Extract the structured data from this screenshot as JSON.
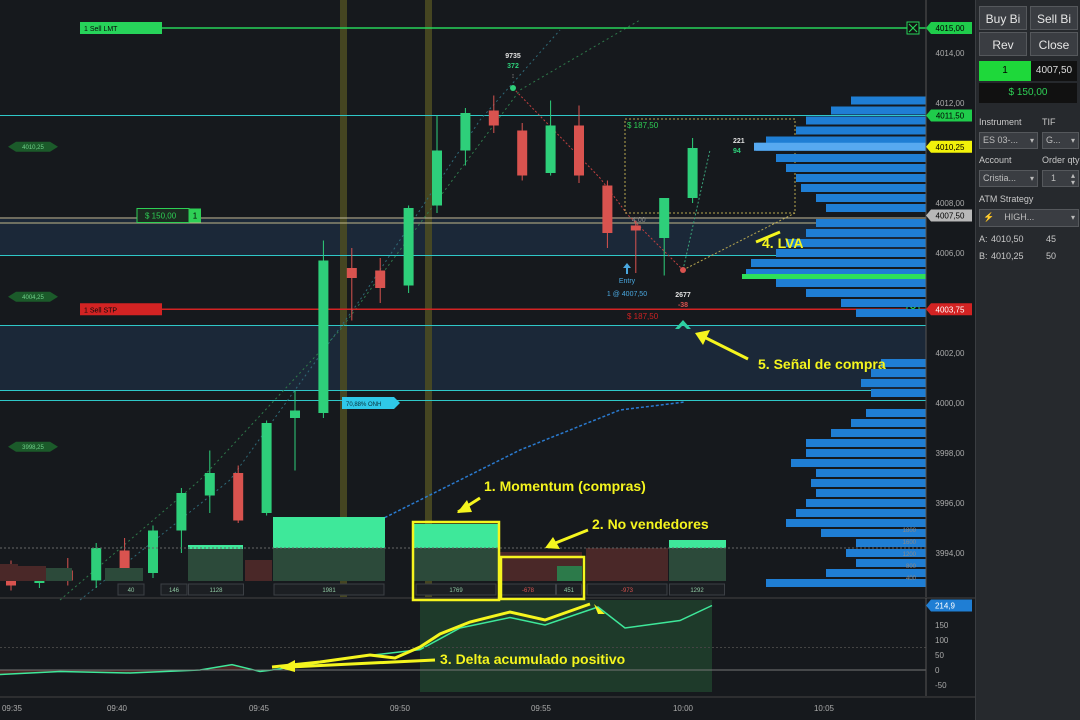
{
  "chart_data": {
    "type": "candlestick",
    "instrument_price_axis": {
      "ticks": [
        "4014,00",
        "4012,00",
        "4008,00",
        "4006,00",
        "4002,00",
        "4000,00",
        "3998,00",
        "3996,00",
        "3994,00"
      ],
      "ylim": [
        3992.5,
        4015.8
      ]
    },
    "time_axis": {
      "ticks": [
        "09:35",
        "09:40",
        "09:45",
        "09:50",
        "09:55",
        "10:00",
        "10:05"
      ]
    },
    "candles": [
      {
        "o": 3993.2,
        "h": 3993.7,
        "l": 3992.5,
        "c": 3992.7
      },
      {
        "o": 3992.8,
        "h": 3993.4,
        "l": 3992.6,
        "c": 3993.3
      },
      {
        "o": 3993.3,
        "h": 3993.8,
        "l": 3992.7,
        "c": 3992.9
      },
      {
        "o": 3992.9,
        "h": 3994.4,
        "l": 3992.6,
        "c": 3994.2
      },
      {
        "o": 3994.1,
        "h": 3994.6,
        "l": 3993.0,
        "c": 3993.1
      },
      {
        "o": 3993.2,
        "h": 3995.1,
        "l": 3993.0,
        "c": 3994.9
      },
      {
        "o": 3994.9,
        "h": 3996.6,
        "l": 3994.0,
        "c": 3996.4
      },
      {
        "o": 3996.3,
        "h": 3998.1,
        "l": 3995.6,
        "c": 3997.2
      },
      {
        "o": 3997.2,
        "h": 3997.5,
        "l": 3995.2,
        "c": 3995.3
      },
      {
        "o": 3995.6,
        "h": 3999.3,
        "l": 3995.5,
        "c": 3999.2
      },
      {
        "o": 3999.4,
        "h": 4000.5,
        "l": 3997.3,
        "c": 3999.7
      },
      {
        "o": 3999.6,
        "h": 4006.5,
        "l": 3999.4,
        "c": 4005.7
      },
      {
        "o": 4005.4,
        "h": 4006.2,
        "l": 4003.3,
        "c": 4005.0
      },
      {
        "o": 4005.3,
        "h": 4005.8,
        "l": 4004.0,
        "c": 4004.6
      },
      {
        "o": 4004.7,
        "h": 4007.9,
        "l": 4004.4,
        "c": 4007.8
      },
      {
        "o": 4007.9,
        "h": 4011.5,
        "l": 4007.6,
        "c": 4010.1
      },
      {
        "o": 4010.1,
        "h": 4011.8,
        "l": 4009.5,
        "c": 4011.6
      },
      {
        "o": 4011.7,
        "h": 4012.3,
        "l": 4010.8,
        "c": 4011.1
      },
      {
        "o": 4010.9,
        "h": 4011.2,
        "l": 4008.9,
        "c": 4009.1
      },
      {
        "o": 4009.2,
        "h": 4012.1,
        "l": 4009.1,
        "c": 4011.1
      },
      {
        "o": 4011.1,
        "h": 4011.9,
        "l": 4008.8,
        "c": 4009.1
      },
      {
        "o": 4008.7,
        "h": 4008.9,
        "l": 4006.2,
        "c": 4006.8
      },
      {
        "o": 4007.1,
        "h": 4007.3,
        "l": 4005.2,
        "c": 4006.9
      },
      {
        "o": 4006.6,
        "h": 4008.2,
        "l": 4005.1,
        "c": 4008.2
      },
      {
        "o": 4008.2,
        "h": 4010.6,
        "l": 4008.0,
        "c": 4010.2
      }
    ],
    "order_lines": [
      {
        "label": "1  Sell LMT",
        "price_tag": "4015,00",
        "y_price": 4015.0,
        "color": "#27d35a"
      },
      {
        "label": "1  Sell STP",
        "price_tag": "4003,75",
        "y_price": 4003.75,
        "color": "#d32323"
      }
    ],
    "price_tags": [
      {
        "text": "4011,50",
        "price": 4011.5,
        "bg": "#1fcc4b",
        "fg": "#000000"
      },
      {
        "text": "4010,25",
        "price": 4010.25,
        "bg": "#f2f20a",
        "fg": "#000000"
      },
      {
        "text": "4007,50",
        "price": 4007.5,
        "bg": "#b8b8b8",
        "fg": "#000000"
      },
      {
        "text": "4003,75",
        "price": 4003.75,
        "bg": "#d32323",
        "fg": "#ffffff"
      }
    ],
    "left_level_tags": [
      {
        "text": "4010,25",
        "price": 4010.25
      },
      {
        "text": "4004,25",
        "price": 4004.25
      },
      {
        "text": "3998,25",
        "price": 3998.25
      }
    ],
    "horizontal_levels": [
      4011.5,
      4007.2,
      4005.9,
      4003.1,
      4000.5,
      4000.1
    ],
    "position_tag": {
      "text": "$ 150,00",
      "qty": "1",
      "price": 4007.5
    },
    "profit_target_text": "$ 187,50",
    "loss_text": "$ 187,50",
    "trade_labels": {
      "high_volume": "9735",
      "high_delta": "372",
      "last_volume": "221",
      "last_delta": "94",
      "low_volume": "2677",
      "low_delta": "-38",
      "entry_label": "Entry",
      "entry_fill": "1 @ 4007,50",
      "stop_ghost": "4,00",
      "onh_label": "70,88%  ONH"
    },
    "volume_profile_bars": [
      {
        "price": 4012.1,
        "len": 75
      },
      {
        "price": 4011.7,
        "len": 95
      },
      {
        "price": 4011.3,
        "len": 120
      },
      {
        "price": 4010.9,
        "len": 130
      },
      {
        "price": 4010.5,
        "len": 160
      },
      {
        "price": 4010.25,
        "len": 170
      },
      {
        "price": 4009.8,
        "len": 150
      },
      {
        "price": 4009.4,
        "len": 140
      },
      {
        "price": 4009.0,
        "len": 130
      },
      {
        "price": 4008.6,
        "len": 125
      },
      {
        "price": 4008.2,
        "len": 110
      },
      {
        "price": 4007.8,
        "len": 100
      },
      {
        "price": 4007.2,
        "len": 110
      },
      {
        "price": 4006.8,
        "len": 120
      },
      {
        "price": 4006.4,
        "len": 140
      },
      {
        "price": 4006.0,
        "len": 150
      },
      {
        "price": 4005.6,
        "len": 175
      },
      {
        "price": 4005.2,
        "len": 180
      },
      {
        "price": 4004.8,
        "len": 150
      },
      {
        "price": 4004.4,
        "len": 120
      },
      {
        "price": 4004.0,
        "len": 85
      },
      {
        "price": 4003.6,
        "len": 70
      },
      {
        "price": 4001.6,
        "len": 45
      },
      {
        "price": 4001.2,
        "len": 55
      },
      {
        "price": 4000.8,
        "len": 65
      },
      {
        "price": 4000.4,
        "len": 55
      },
      {
        "price": 3999.6,
        "len": 60
      },
      {
        "price": 3999.2,
        "len": 75
      },
      {
        "price": 3998.8,
        "len": 95
      },
      {
        "price": 3998.4,
        "len": 120
      },
      {
        "price": 3998.0,
        "len": 120
      },
      {
        "price": 3997.6,
        "len": 135
      },
      {
        "price": 3997.2,
        "len": 110
      },
      {
        "price": 3996.8,
        "len": 115
      },
      {
        "price": 3996.4,
        "len": 110
      },
      {
        "price": 3996.0,
        "len": 120
      },
      {
        "price": 3995.6,
        "len": 130
      },
      {
        "price": 3995.2,
        "len": 140
      },
      {
        "price": 3994.8,
        "len": 105
      },
      {
        "price": 3994.4,
        "len": 70
      },
      {
        "price": 3994.0,
        "len": 80
      },
      {
        "price": 3993.6,
        "len": 70
      },
      {
        "price": 3993.2,
        "len": 100
      },
      {
        "price": 3992.8,
        "len": 160
      }
    ],
    "delta_bars": {
      "labels": [
        "40",
        "146",
        "1128",
        "1981",
        "1769",
        "-678",
        "451",
        "-973",
        "1292"
      ],
      "level_labels": [
        "1800",
        "1600",
        "1200",
        "800",
        "400"
      ]
    },
    "cumulative_delta": {
      "last": "214,9",
      "ticks": [
        "150",
        "100",
        "50",
        "0",
        "-50"
      ],
      "ylim": [
        -75,
        215
      ]
    },
    "annotations": [
      "1. Momentum (compras)",
      "2. No vendedores",
      "3. Delta acumulado positivo",
      "4. LVA",
      "5. Señal de compra"
    ]
  },
  "panel": {
    "buy_bid": "Buy Bi",
    "sell_bid": "Sell Bi",
    "rev": "Rev",
    "close": "Close",
    "qty": "1",
    "price": "4007,50",
    "pnl": "$ 150,00",
    "instrument_label": "Instrument",
    "instrument_value": "ES 03-...",
    "tif_label": "TIF",
    "tif_value": "G...",
    "account_label": "Account",
    "account_value": "Cristia...",
    "order_qty_label": "Order qty",
    "order_qty_value": "1",
    "atm_label": "ATM Strategy",
    "atm_value": "HIGH...",
    "ask_label": "A:",
    "ask_price": "4010,50",
    "ask_size": "45",
    "bid_label": "B:",
    "bid_price": "4010,25",
    "bid_size": "50"
  }
}
